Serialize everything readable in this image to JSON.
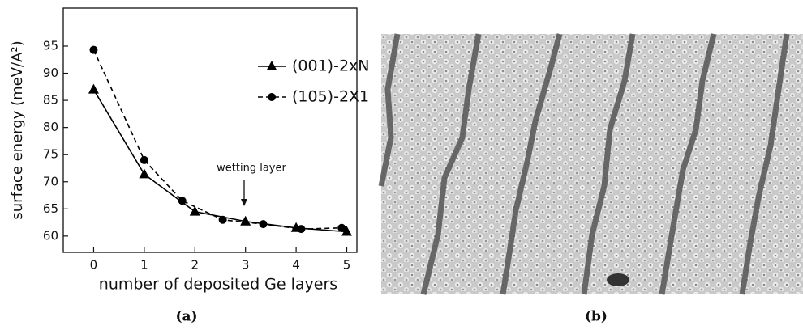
{
  "chart_data": {
    "type": "line",
    "xlabel": "number of deposited Ge layers",
    "ylabel": "surface energy (meV/A²)",
    "annotation": "wetting layer",
    "xlim": [
      -0.6,
      5.2
    ],
    "ylim": [
      57,
      102
    ],
    "xticks": [
      0,
      1,
      2,
      3,
      4,
      5
    ],
    "yticks": [
      60,
      65,
      70,
      75,
      80,
      85,
      90,
      95
    ],
    "legend": "upper right",
    "series": [
      {
        "name": "(001)-2xN",
        "color": "#000000",
        "dash": "solid",
        "marker": "triangle",
        "x": [
          0,
          1,
          2,
          3,
          4,
          5
        ],
        "values": [
          87,
          71.4,
          64.5,
          62.7,
          61.5,
          60.8
        ]
      },
      {
        "name": "(105)-2X1",
        "color": "#000000",
        "dash": "dashed",
        "marker": "circle",
        "x": [
          0,
          1,
          1.75,
          2.55,
          3.35,
          4.1,
          4.9
        ],
        "values": [
          94.3,
          74,
          66.5,
          63,
          62.2,
          61.3,
          61.5
        ]
      }
    ]
  },
  "captions": [
    "(a)",
    "(b)"
  ]
}
